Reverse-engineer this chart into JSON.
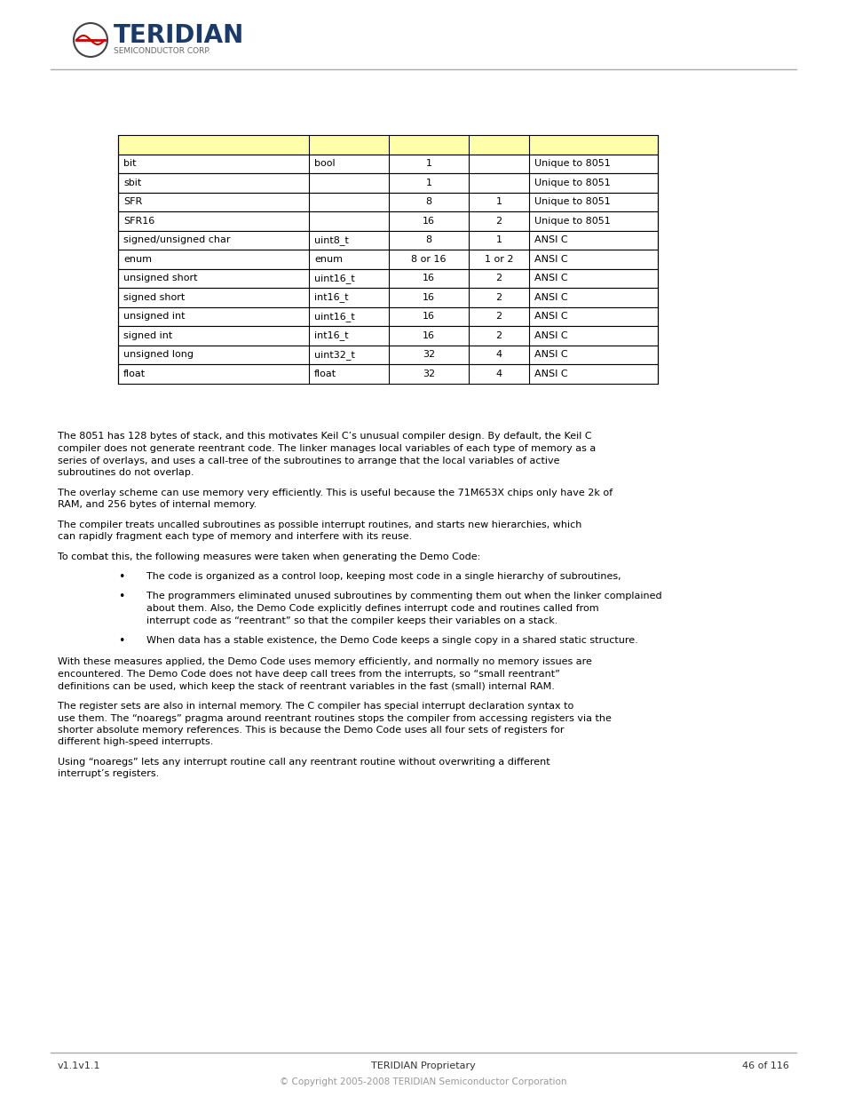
{
  "page_bg": "#ffffff",
  "footer_left": "v1.1v1.1",
  "footer_center": "TERIDIAN Proprietary",
  "footer_right": "46 of 116",
  "footer_copy": "© Copyright 2005-2008 TERIDIAN Semiconductor Corporation",
  "table_header_bg": "#ffffaa",
  "table_border_color": "#000000",
  "rows": [
    [
      "bit",
      "bool",
      "1",
      "",
      "Unique to 8051"
    ],
    [
      "sbit",
      "",
      "1",
      "",
      "Unique to 8051"
    ],
    [
      "SFR",
      "",
      "8",
      "1",
      "Unique to 8051"
    ],
    [
      "SFR16",
      "",
      "16",
      "2",
      "Unique to 8051"
    ],
    [
      "signed/unsigned char",
      "uint8_t",
      "8",
      "1",
      "ANSI C"
    ],
    [
      "enum",
      "enum",
      "8 or 16",
      "1 or 2",
      "ANSI C"
    ],
    [
      "unsigned short",
      "uint16_t",
      "16",
      "2",
      "ANSI C"
    ],
    [
      "signed short",
      "int16_t",
      "16",
      "2",
      "ANSI C"
    ],
    [
      "unsigned int",
      "uint16_t",
      "16",
      "2",
      "ANSI C"
    ],
    [
      "signed int",
      "int16_t",
      "16",
      "2",
      "ANSI C"
    ],
    [
      "unsigned long",
      "uint32_t",
      "32",
      "4",
      "ANSI C"
    ],
    [
      "float",
      "float",
      "32",
      "4",
      "ANSI C"
    ]
  ],
  "col_aligns": [
    "left",
    "left",
    "center",
    "center",
    "left"
  ],
  "body_paragraphs": [
    "The 8051 has 128 bytes of stack, and this motivates Keil C’s unusual compiler design. By default, the Keil C compiler does not generate reentrant code. The linker manages local variables of each type of memory as a series of overlays, and uses a call-tree of the subroutines to arrange that the local variables of active subroutines do not overlap.",
    "The overlay scheme can use memory very efficiently. This is useful because the 71M653X chips only have 2k of RAM, and 256 bytes of internal memory.",
    "The compiler treats uncalled subroutines as possible interrupt routines, and starts new hierarchies, which can rapidly fragment each type of memory and interfere with its reuse.",
    "To combat this, the following measures were taken when generating the Demo Code:"
  ],
  "bullets": [
    "The code is organized as a control loop, keeping most code in a single hierarchy of subroutines,",
    "The programmers eliminated unused subroutines by commenting them out when the linker complained about them. Also, the Demo Code explicitly defines interrupt code and routines called from interrupt code as “reentrant” so that the compiler keeps their variables on a stack.",
    "When data has a stable existence, the Demo Code keeps a single copy in a shared static structure."
  ],
  "body_paragraphs2": [
    "With these measures applied, the Demo Code uses memory efficiently, and normally no memory issues are encountered. The Demo Code does not have deep call trees from the interrupts, so “small reentrant” definitions can be used, which keep the stack of reentrant variables in the fast (small) internal RAM.",
    "The register sets are also in internal memory. The C compiler has special interrupt declaration syntax to use them. The “noaregs” pragma around reentrant routines stops the compiler from accessing registers via the shorter absolute memory references. This is because the Demo Code uses all four sets of registers for different high-speed interrupts.",
    "Using “noaregs” lets any interrupt routine call any reentrant routine without overwriting a different interrupt’s registers."
  ],
  "text_color": "#000000",
  "text_fontsize": 8.0,
  "table_fontsize": 8.0
}
